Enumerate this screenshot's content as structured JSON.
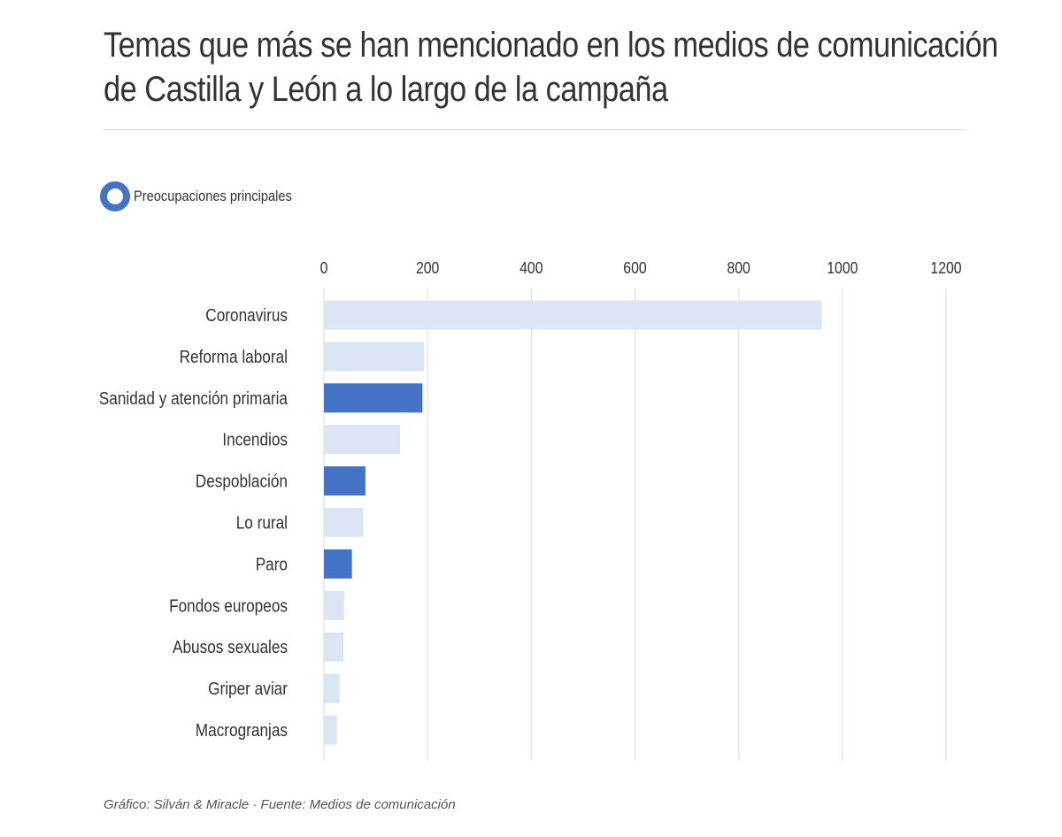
{
  "chart_data": {
    "type": "bar",
    "orientation": "horizontal",
    "title_lines": [
      "Temas que más se han mencionado en los medios de comunicación",
      "de Castilla y León a lo largo de la campaña"
    ],
    "legend": {
      "label": "Preocupaciones principales",
      "color": "#4472c4"
    },
    "xlim": [
      0,
      1200
    ],
    "xticks": [
      "0",
      "200",
      "400",
      "600",
      "800",
      "1000",
      "1200"
    ],
    "xtick_values": [
      0,
      200,
      400,
      600,
      800,
      1000,
      1200
    ],
    "grid": true,
    "axis_position": "top",
    "categories": [
      "Coronavirus",
      "Reforma laboral",
      "Sanidad y atención primaria",
      "Incendios",
      "Despoblación",
      "Lo rural",
      "Paro",
      "Fondos europeos",
      "Abusos sexuales",
      "Griper aviar",
      "Macrogranjas"
    ],
    "values": [
      960,
      193,
      190,
      147,
      80,
      76,
      54,
      39,
      38,
      30,
      25
    ],
    "highlight": [
      false,
      false,
      true,
      false,
      true,
      false,
      true,
      false,
      false,
      false,
      false
    ],
    "colors": {
      "default": "#dbe5f4",
      "highlight": "#4472c4",
      "grid": "#e6e6e6"
    }
  },
  "footer": {
    "text": "Gráfico: Silván & Miracle · Fuente: Medios de comunicación"
  }
}
